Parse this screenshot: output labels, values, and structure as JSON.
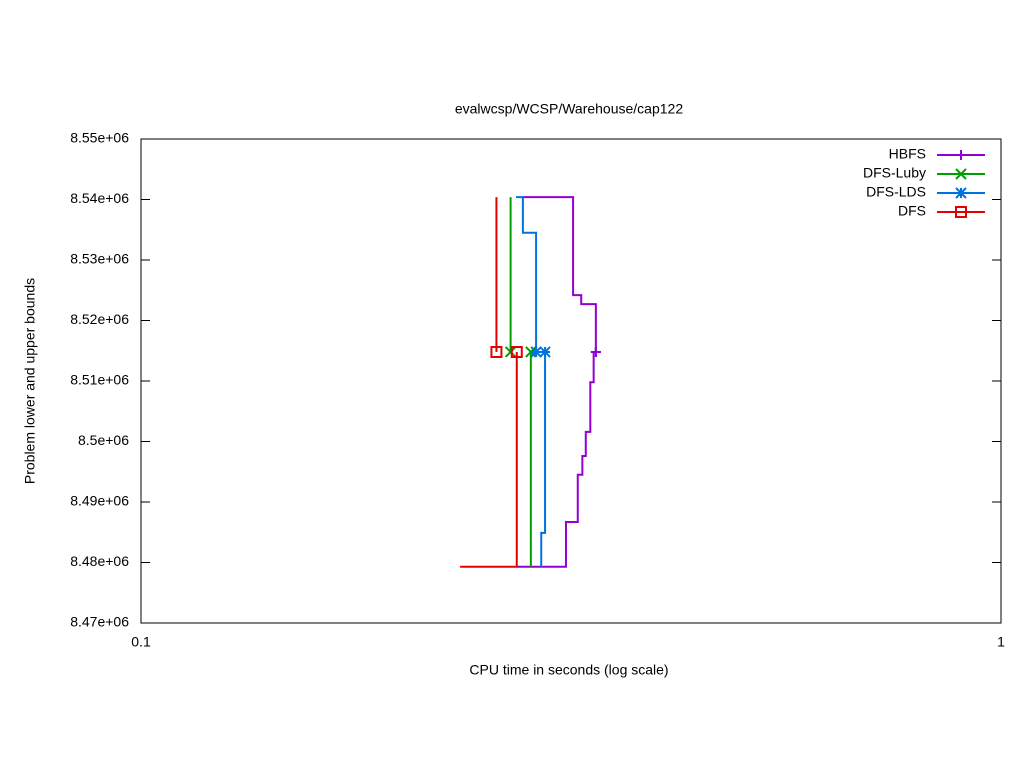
{
  "chart_data": {
    "type": "line",
    "title": "evalwcsp/WCSP/Warehouse/cap122",
    "x_label": "CPU time in seconds (log scale)",
    "y_label": "Problem lower and upper bounds",
    "xlog": true,
    "xlim": [
      0.1,
      1
    ],
    "xticks": [
      0.1,
      1
    ],
    "ylim": [
      8470000,
      8550000
    ],
    "yticks": [
      {
        "value": 8470000,
        "label": "8.47e+06"
      },
      {
        "value": 8480000,
        "label": "8.48e+06"
      },
      {
        "value": 8490000,
        "label": "8.49e+06"
      },
      {
        "value": 8500000,
        "label": "8.5e+06"
      },
      {
        "value": 8510000,
        "label": "8.51e+06"
      },
      {
        "value": 8520000,
        "label": "8.52e+06"
      },
      {
        "value": 8530000,
        "label": "8.53e+06"
      },
      {
        "value": 8540000,
        "label": "8.54e+06"
      },
      {
        "value": 8550000,
        "label": "8.55e+06"
      }
    ],
    "legend": "top-right",
    "series": [
      {
        "name": "HBFS",
        "color": "#9400d3",
        "marker": "plus",
        "lower": {
          "x": [
            0.2735,
            0.312,
            0.312,
            0.322,
            0.322,
            0.326,
            0.326,
            0.329,
            0.329,
            0.333,
            0.333,
            0.336,
            0.336,
            0.338
          ],
          "values": [
            8479300,
            8479300,
            8486700,
            8486700,
            8494500,
            8494500,
            8497600,
            8497600,
            8501600,
            8501600,
            8509800,
            8509800,
            8514800,
            8514800
          ]
        },
        "upper": {
          "x": [
            0.278,
            0.318,
            0.318,
            0.325,
            0.325,
            0.338,
            0.338
          ],
          "values": [
            8540400,
            8540400,
            8524200,
            8524200,
            8522700,
            8522700,
            8514800
          ]
        }
      },
      {
        "name": "DFS-Luby",
        "color": "#009e00",
        "marker": "x",
        "lower": {
          "x": [
            0.284,
            0.284
          ],
          "values": [
            8479300,
            8514800
          ]
        },
        "upper": {
          "x": [
            0.269,
            0.269
          ],
          "values": [
            8540400,
            8514800
          ]
        }
      },
      {
        "name": "DFS-LDS",
        "color": "#0072e0",
        "marker": "star",
        "lower": {
          "x": [
            0.292,
            0.292,
            0.295,
            0.295
          ],
          "values": [
            8479300,
            8484900,
            8484900,
            8514800
          ]
        },
        "upper": {
          "x": [
            0.273,
            0.278,
            0.278,
            0.288,
            0.288
          ],
          "values": [
            8540400,
            8540400,
            8534500,
            8534500,
            8514800
          ]
        }
      },
      {
        "name": "DFS",
        "color": "#e50000",
        "marker": "square",
        "lower": {
          "x": [
            0.235,
            0.2735,
            0.2735
          ],
          "values": [
            8479300,
            8479300,
            8514800
          ]
        },
        "upper": {
          "x": [
            0.259,
            0.259
          ],
          "values": [
            8540400,
            8514800
          ]
        }
      }
    ]
  }
}
